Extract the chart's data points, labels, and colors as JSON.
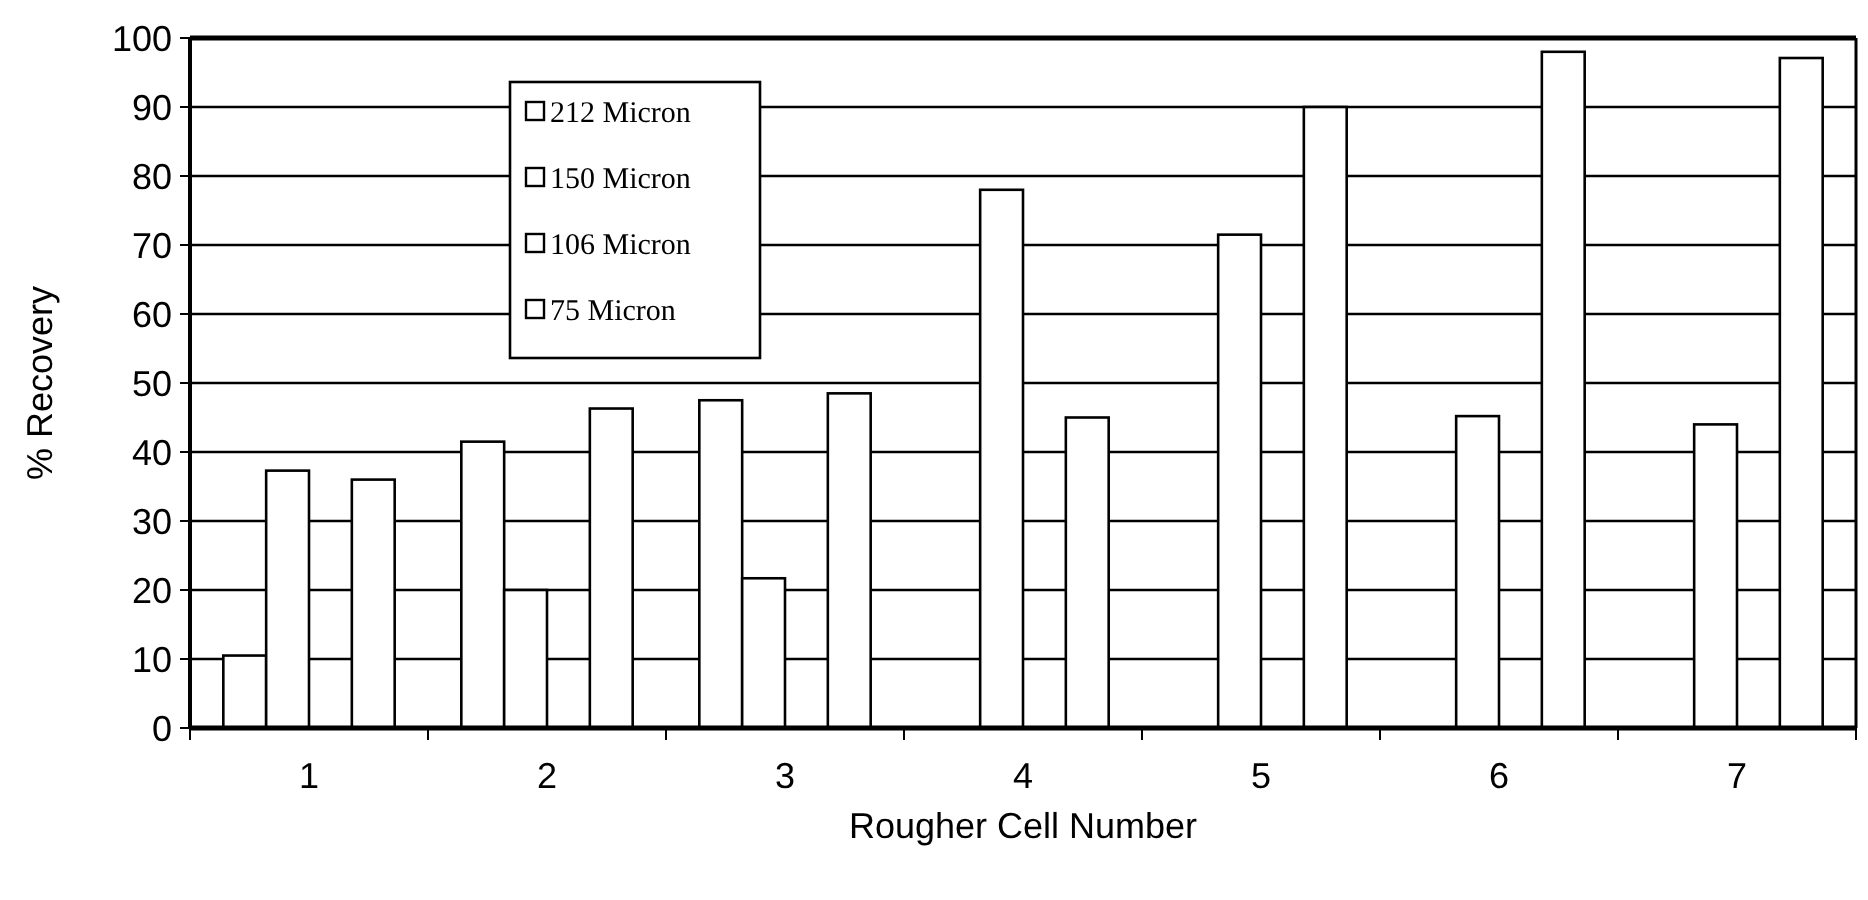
{
  "chart_data": {
    "type": "bar",
    "xlabel": "Rougher Cell Number",
    "ylabel": "% Recovery",
    "categories": [
      "1",
      "2",
      "3",
      "4",
      "5",
      "6",
      "7"
    ],
    "series": [
      {
        "name": "212 Micron",
        "color": "#ffffff",
        "values": [
          10.5,
          41.5,
          47.5,
          null,
          null,
          null,
          null
        ]
      },
      {
        "name": "150 Micron",
        "color": "#ffffff",
        "values": [
          37.3,
          20,
          21.7,
          78,
          71.5,
          45.2,
          44
        ]
      },
      {
        "name": "106 Micron",
        "color": "#ffffff",
        "values": [
          null,
          null,
          null,
          null,
          null,
          null,
          null
        ]
      },
      {
        "name": "75 Micron",
        "color": "#ffffff",
        "values": [
          36,
          46.3,
          48.5,
          45,
          90,
          98,
          97.1
        ]
      }
    ],
    "ylim": [
      0,
      100
    ],
    "yticks": [
      0,
      10,
      20,
      30,
      40,
      50,
      60,
      70,
      80,
      90,
      100
    ],
    "grid": "y",
    "legend": "top left"
  }
}
